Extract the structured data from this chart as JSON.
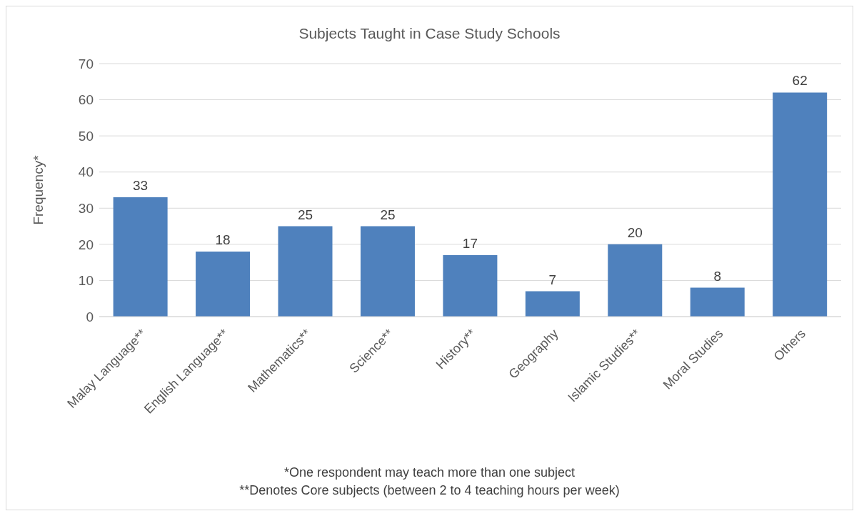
{
  "chart_data": {
    "type": "bar",
    "title": "Subjects Taught in Case Study Schools",
    "ylabel": "Frequency*",
    "categories": [
      "Malay Language**",
      "English Language**",
      "Mathematics**",
      "Science**",
      "History**",
      "Geography",
      "Islamic Studies**",
      "Moral Studies",
      "Others"
    ],
    "values": [
      33,
      18,
      25,
      25,
      17,
      7,
      20,
      8,
      62
    ],
    "color": "#4f81bd",
    "ylim": [
      0,
      70
    ],
    "yticks": [
      0,
      10,
      20,
      30,
      40,
      50,
      60,
      70
    ],
    "grid": "y",
    "data_labels": true,
    "annotations": [
      "*One respondent may teach more than one subject",
      "**Denotes Core subjects (between 2 to 4 teaching hours per week)"
    ]
  }
}
